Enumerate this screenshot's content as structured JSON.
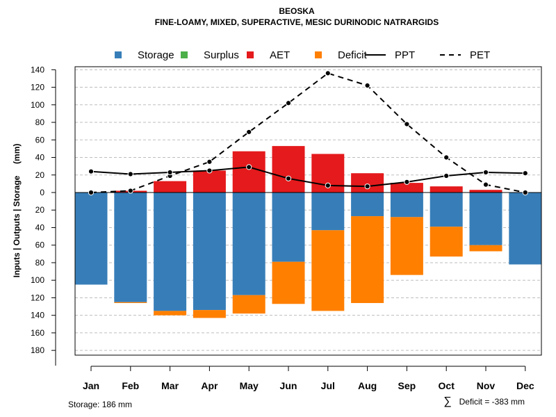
{
  "chart_data": {
    "type": "bar",
    "title": "BEOSKA",
    "subtitle": "FINE-LOAMY, MIXED, SUPERACTIVE, MESIC DURINODIC NATRARGIDS",
    "ylabel": "Inputs | Outputs | Storage     (mm)",
    "ylim": [
      -185,
      140
    ],
    "yticks": [
      140,
      120,
      100,
      80,
      60,
      40,
      20,
      0,
      -20,
      -40,
      -60,
      -80,
      -100,
      -120,
      -140,
      -160,
      -180
    ],
    "ytick_labels": [
      "140",
      "120",
      "100",
      "80",
      "60",
      "40",
      "20",
      "0",
      "20",
      "40",
      "60",
      "80",
      "100",
      "120",
      "140",
      "160",
      "180"
    ],
    "grid": true,
    "legend_position": "top",
    "legend": [
      {
        "label": "Storage",
        "kind": "box",
        "color": "#377EB8"
      },
      {
        "label": "Surplus",
        "kind": "box",
        "color": "#4DAF4A"
      },
      {
        "label": "AET",
        "kind": "box",
        "color": "#E41A1C"
      },
      {
        "label": "Deficit",
        "kind": "box",
        "color": "#FF7F00"
      },
      {
        "label": "PPT",
        "kind": "solid-line",
        "color": "#000000"
      },
      {
        "label": "PET",
        "kind": "dashed-line",
        "color": "#000000"
      }
    ],
    "categories": [
      "Jan",
      "Feb",
      "Mar",
      "Apr",
      "May",
      "Jun",
      "Jul",
      "Aug",
      "Sep",
      "Oct",
      "Nov",
      "Dec"
    ],
    "series": [
      {
        "name": "AET",
        "color": "#E41A1C",
        "values": [
          0,
          2,
          13,
          25,
          47,
          53,
          44,
          22,
          11,
          7,
          3,
          0
        ]
      },
      {
        "name": "Surplus",
        "color": "#4DAF4A",
        "values": [
          0,
          0,
          0,
          0,
          0,
          0,
          0,
          0,
          0,
          0,
          0,
          0
        ]
      },
      {
        "name": "Storage",
        "color": "#377EB8",
        "values": [
          105,
          125,
          135,
          134,
          117,
          79,
          43,
          27,
          28,
          39,
          60,
          82
        ]
      },
      {
        "name": "Deficit",
        "color": "#FF7F00",
        "values": [
          0,
          1,
          5,
          9,
          21,
          48,
          92,
          99,
          66,
          34,
          7,
          0
        ]
      },
      {
        "name": "PPT",
        "color": "#000000",
        "values": [
          24,
          21,
          23,
          25,
          29,
          16,
          8,
          7,
          12,
          19,
          23,
          22
        ]
      },
      {
        "name": "PET",
        "color": "#000000",
        "values": [
          0,
          2,
          19,
          35,
          69,
          102,
          136,
          122,
          78,
          40,
          9,
          0
        ]
      }
    ]
  },
  "footer": {
    "storage": "Storage: 186 mm",
    "deficit_symbol": "∑",
    "deficit": "Deficit = -383 mm"
  }
}
